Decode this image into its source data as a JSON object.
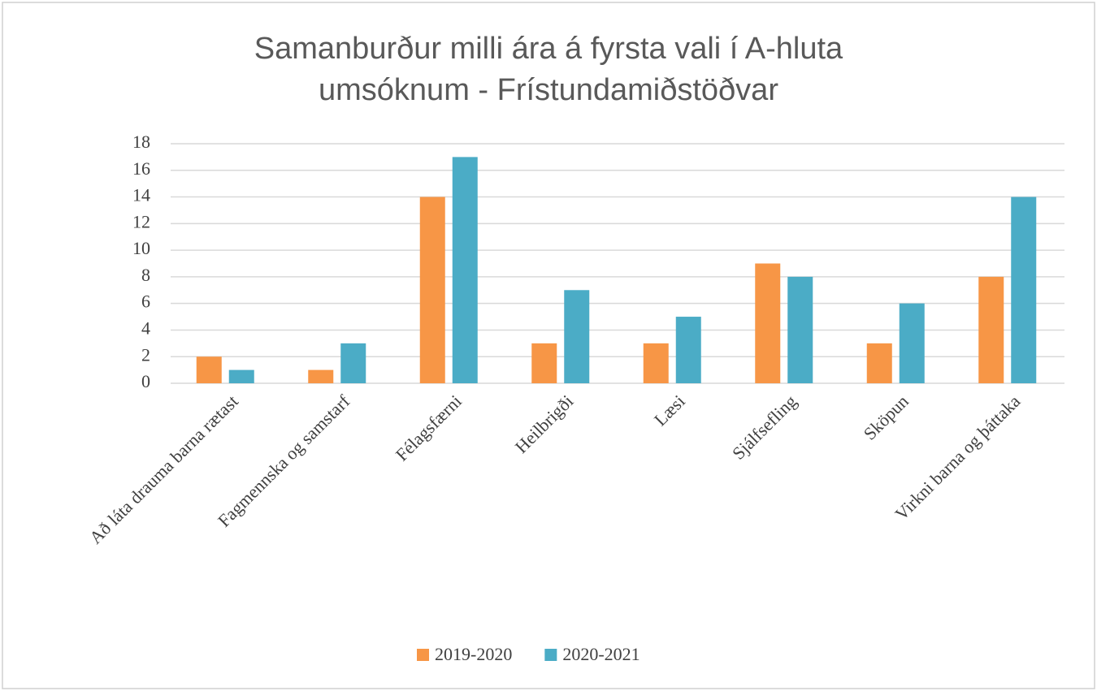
{
  "chart_data": {
    "type": "bar",
    "title": [
      "Samanburður milli ára á fyrsta vali í A-hluta",
      "umsóknum - Frístundamiðstöðvar"
    ],
    "categories": [
      "Að láta drauma barna rætast",
      "Fagmennska og samstarf",
      "Félagsfærni",
      "Heilbrigði",
      "Læsi",
      "Sjálfsefling",
      "Sköpun",
      "Virkni barna og þáttaka"
    ],
    "series": [
      {
        "name": "2019-2020",
        "color": "#f79646",
        "values": [
          2,
          1,
          14,
          3,
          3,
          9,
          3,
          8
        ]
      },
      {
        "name": "2020-2021",
        "color": "#4bacc6",
        "values": [
          1,
          3,
          17,
          7,
          5,
          8,
          6,
          14
        ]
      }
    ],
    "ylim": [
      0,
      18
    ],
    "yticks": [
      0,
      2,
      4,
      6,
      8,
      10,
      12,
      14,
      16,
      18
    ],
    "grid": true,
    "legend": "bottom"
  }
}
